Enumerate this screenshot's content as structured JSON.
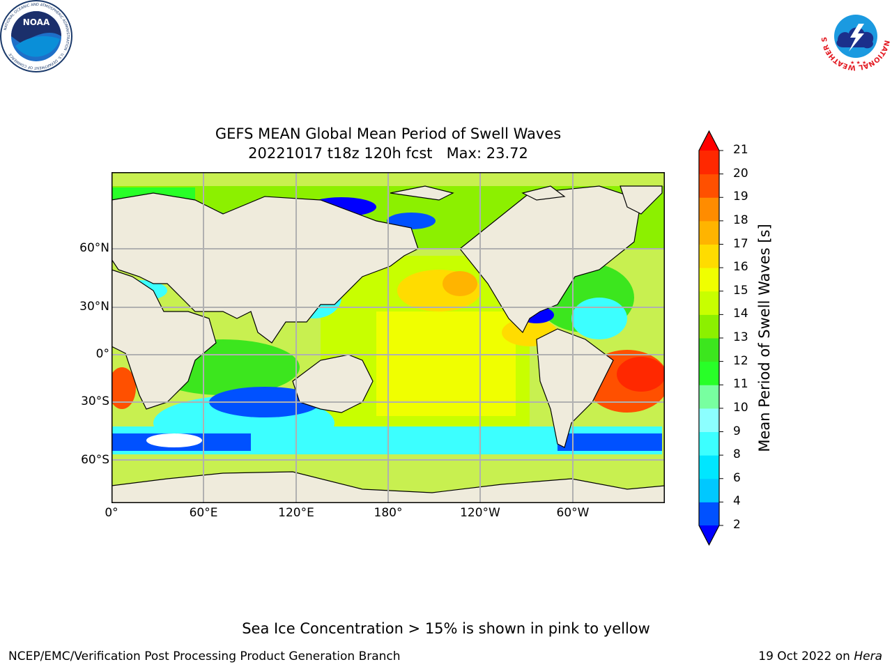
{
  "header": {
    "noaa_logo_text": "NOAA",
    "noaa_ring_text": "NATIONAL OCEANIC AND ATMOSPHERIC ADMINISTRATION · U.S. DEPARTMENT OF COMMERCE",
    "nws_ring_text": "NATIONAL WEATHER SERVICE"
  },
  "map": {
    "title_line1": "GEFS MEAN Global Mean Period of Swell Waves",
    "title_line2": "20221017 t18z 120h fcst   Max: 23.72",
    "lat_labels": [
      "60°N",
      "30°N",
      "0°",
      "30°S",
      "60°S"
    ],
    "lon_labels": [
      "0°",
      "60°E",
      "120°E",
      "180°",
      "120°W",
      "60°W"
    ],
    "land_color": "#efebdc",
    "grid_color": "#b0b0b0"
  },
  "colorbar": {
    "label": "Mean Period of Swell Waves [s]",
    "ticks": [
      "2",
      "4",
      "6",
      "8",
      "9",
      "10",
      "11",
      "12",
      "13",
      "14",
      "15",
      "16",
      "17",
      "18",
      "19",
      "20",
      "21"
    ],
    "colors": [
      "#0051ff",
      "#00c8ff",
      "#00e6ff",
      "#3cffff",
      "#8cffff",
      "#78ffa0",
      "#28ff28",
      "#3ce61e",
      "#8cf000",
      "#c8ff00",
      "#f0ff00",
      "#ffdc00",
      "#ffb400",
      "#ff8c00",
      "#ff5000",
      "#ff2800"
    ],
    "under_color": "#0000ff",
    "over_color": "#ff0000"
  },
  "footer": {
    "note": "Sea Ice Concentration > 15% is shown in pink to yellow",
    "credit": "NCEP/EMC/Verification Post Processing Product Generation Branch",
    "date": "19 Oct 2022 on",
    "host": "Hera"
  }
}
